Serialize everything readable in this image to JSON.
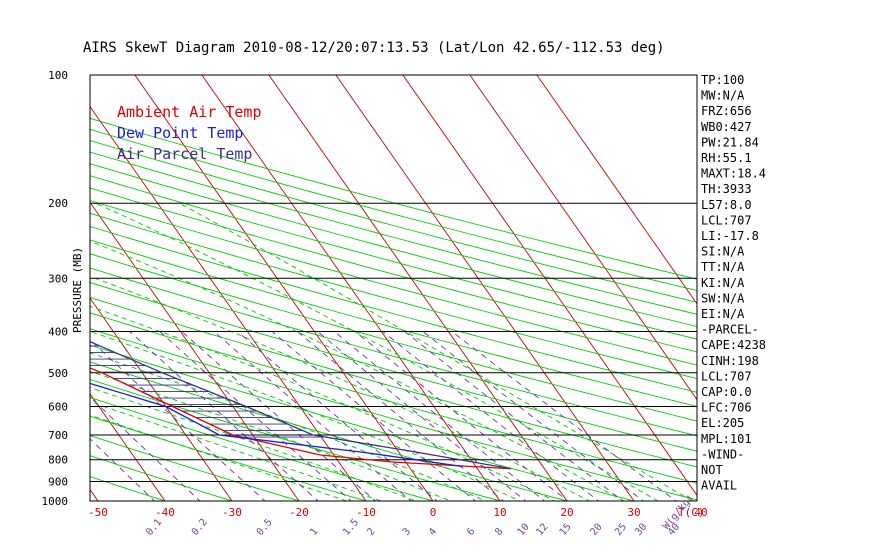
{
  "chart_data": {
    "type": "line",
    "title": "AIRS SkewT Diagram 2010-08-12/20:07:13.53 (Lat/Lon 42.65/-112.53 deg)",
    "ylabel": "PRESSURE (MB)",
    "xlabel": "T(C)",
    "mixing_label": "W(g/kg)",
    "ylim": [
      1000,
      100
    ],
    "y_scale": "log",
    "xlim_bottom": [
      -52,
      48
    ],
    "pressure_levels": [
      100,
      200,
      300,
      400,
      500,
      600,
      700,
      800,
      900,
      1000
    ],
    "bottom_temp_ticks": [
      -50,
      -40,
      -30,
      -20,
      -10,
      0,
      10,
      20,
      30,
      40
    ],
    "top_temp_ticks": [
      -120,
      -110,
      -100,
      -90,
      -80,
      -70,
      -60,
      -50,
      -40
    ],
    "mixing_ratio_ticks": [
      "0.1",
      "0.2",
      "0.5",
      "1",
      "1.5",
      "2",
      "3",
      "4",
      "6",
      "8",
      "10",
      "12",
      "15",
      "20",
      "25",
      "30",
      "40"
    ],
    "legend": [
      {
        "name": "Ambient Air Temp",
        "color": "#e00000"
      },
      {
        "name": "Dew Point Temp",
        "color": "#1c1ce0"
      },
      {
        "name": "Air Parcel Temp",
        "color": "#3a2f8c"
      }
    ],
    "series": [
      {
        "name": "Ambient Air Temp",
        "color": "#e00000",
        "points": [
          [
            -62,
            100
          ],
          [
            -58,
            135
          ],
          [
            -57,
            155
          ],
          [
            -58,
            195
          ],
          [
            -59,
            240
          ],
          [
            -55,
            300
          ],
          [
            -47,
            400
          ],
          [
            -36,
            500
          ],
          [
            -29,
            600
          ],
          [
            -23,
            700
          ],
          [
            -12,
            780
          ],
          [
            -2,
            810
          ],
          [
            15,
            840
          ]
        ]
      },
      {
        "name": "Dew Point Temp",
        "color": "#1c1ce0",
        "points": [
          [
            -88,
            100
          ],
          [
            -91,
            140
          ],
          [
            -79,
            200
          ],
          [
            -71,
            260
          ],
          [
            -64,
            300
          ],
          [
            -56,
            400
          ],
          [
            -43,
            500
          ],
          [
            -30,
            600
          ],
          [
            -25,
            700
          ],
          [
            -5,
            770
          ],
          [
            8,
            830
          ]
        ]
      },
      {
        "name": "Air Parcel Temp",
        "color": "#3a2f8c",
        "points": [
          [
            -88,
            100
          ],
          [
            -80,
            140
          ],
          [
            -70,
            195
          ],
          [
            -61,
            240
          ],
          [
            -50,
            300
          ],
          [
            -37,
            400
          ],
          [
            -27,
            500
          ],
          [
            -18,
            600
          ],
          [
            -11,
            700
          ],
          [
            3,
            770
          ],
          [
            15,
            840
          ]
        ]
      }
    ]
  },
  "indices": [
    "TP:100",
    "MW:N/A",
    "FRZ:656",
    "WB0:427",
    "PW:21.84",
    "RH:55.1",
    "MAXT:18.4",
    "TH:3933",
    "L57:8.0",
    "LCL:707",
    "LI:-17.8",
    "SI:N/A",
    "TT:N/A",
    "KI:N/A",
    "SW:N/A",
    "EI:N/A",
    "-PARCEL-",
    "CAPE:4238",
    "CINH:198",
    "LCL:707",
    "CAP:0.0",
    "LFC:706",
    "EL:205",
    "MPL:101",
    "-WIND-",
    "NOT",
    "AVAIL"
  ],
  "colors": {
    "isotherm": "#cc0000",
    "dry_adiabat": "#00cc00",
    "moist_adiabat": "#00cc00",
    "mixing_ratio": "#6633aa",
    "isobar": "#000000",
    "cape_hatch": "#3a2f8c"
  }
}
